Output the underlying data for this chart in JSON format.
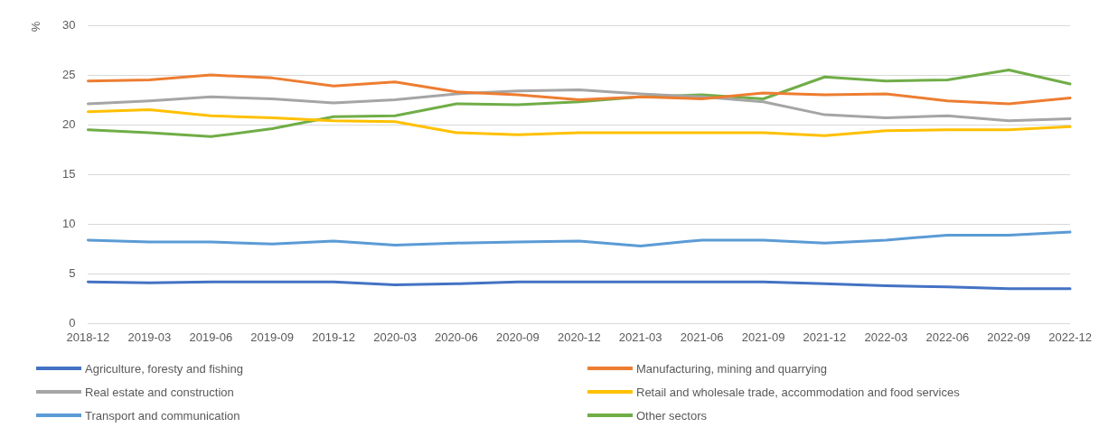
{
  "chart_data": {
    "type": "line",
    "ylabel": "%",
    "categories": [
      "2018-12",
      "2019-03",
      "2019-06",
      "2019-09",
      "2019-12",
      "2020-03",
      "2020-06",
      "2020-09",
      "2020-12",
      "2021-03",
      "2021-06",
      "2021-09",
      "2021-12",
      "2022-03",
      "2022-06",
      "2022-09",
      "2022-12"
    ],
    "series": [
      {
        "name": "Agriculture, foresty and fishing",
        "color": "#4472c4",
        "values": [
          4.2,
          4.1,
          4.2,
          4.2,
          4.2,
          3.9,
          4.0,
          4.2,
          4.2,
          4.2,
          4.2,
          4.2,
          4.0,
          3.8,
          3.7,
          3.5,
          3.5
        ]
      },
      {
        "name": "Manufacturing, mining and quarrying",
        "color": "#ed7d31",
        "values": [
          24.4,
          24.5,
          25.0,
          24.7,
          23.9,
          24.3,
          23.3,
          23.0,
          22.5,
          22.8,
          22.6,
          23.2,
          23.0,
          23.1,
          22.4,
          22.1,
          22.7
        ]
      },
      {
        "name": "Real estate and construction",
        "color": "#a5a5a5",
        "values": [
          22.1,
          22.4,
          22.8,
          22.6,
          22.2,
          22.5,
          23.1,
          23.4,
          23.5,
          23.1,
          22.8,
          22.3,
          21.0,
          20.7,
          20.9,
          20.4,
          20.6
        ]
      },
      {
        "name": "Retail and wholesale trade, accommodation and food services",
        "color": "#ffc000",
        "values": [
          21.3,
          21.5,
          20.9,
          20.7,
          20.4,
          20.3,
          19.2,
          19.0,
          19.2,
          19.2,
          19.2,
          19.2,
          18.9,
          19.4,
          19.5,
          19.5,
          19.8
        ]
      },
      {
        "name": "Transport and communication",
        "color": "#5b9bd5",
        "values": [
          8.4,
          8.2,
          8.2,
          8.0,
          8.3,
          7.9,
          8.1,
          8.2,
          8.3,
          7.8,
          8.4,
          8.4,
          8.1,
          8.4,
          8.9,
          8.9,
          9.2
        ]
      },
      {
        "name": "Other sectors",
        "color": "#70ad47",
        "values": [
          19.5,
          19.2,
          18.8,
          19.6,
          20.8,
          20.9,
          22.1,
          22.0,
          22.3,
          22.8,
          23.0,
          22.6,
          24.8,
          24.4,
          24.5,
          25.5,
          24.1
        ]
      }
    ],
    "ylim": [
      0,
      30
    ],
    "yticks": [
      0,
      5,
      10,
      15,
      20,
      25,
      30
    ],
    "grid": "y",
    "legend": "bottom",
    "marker": "none",
    "line_style": "solid"
  }
}
